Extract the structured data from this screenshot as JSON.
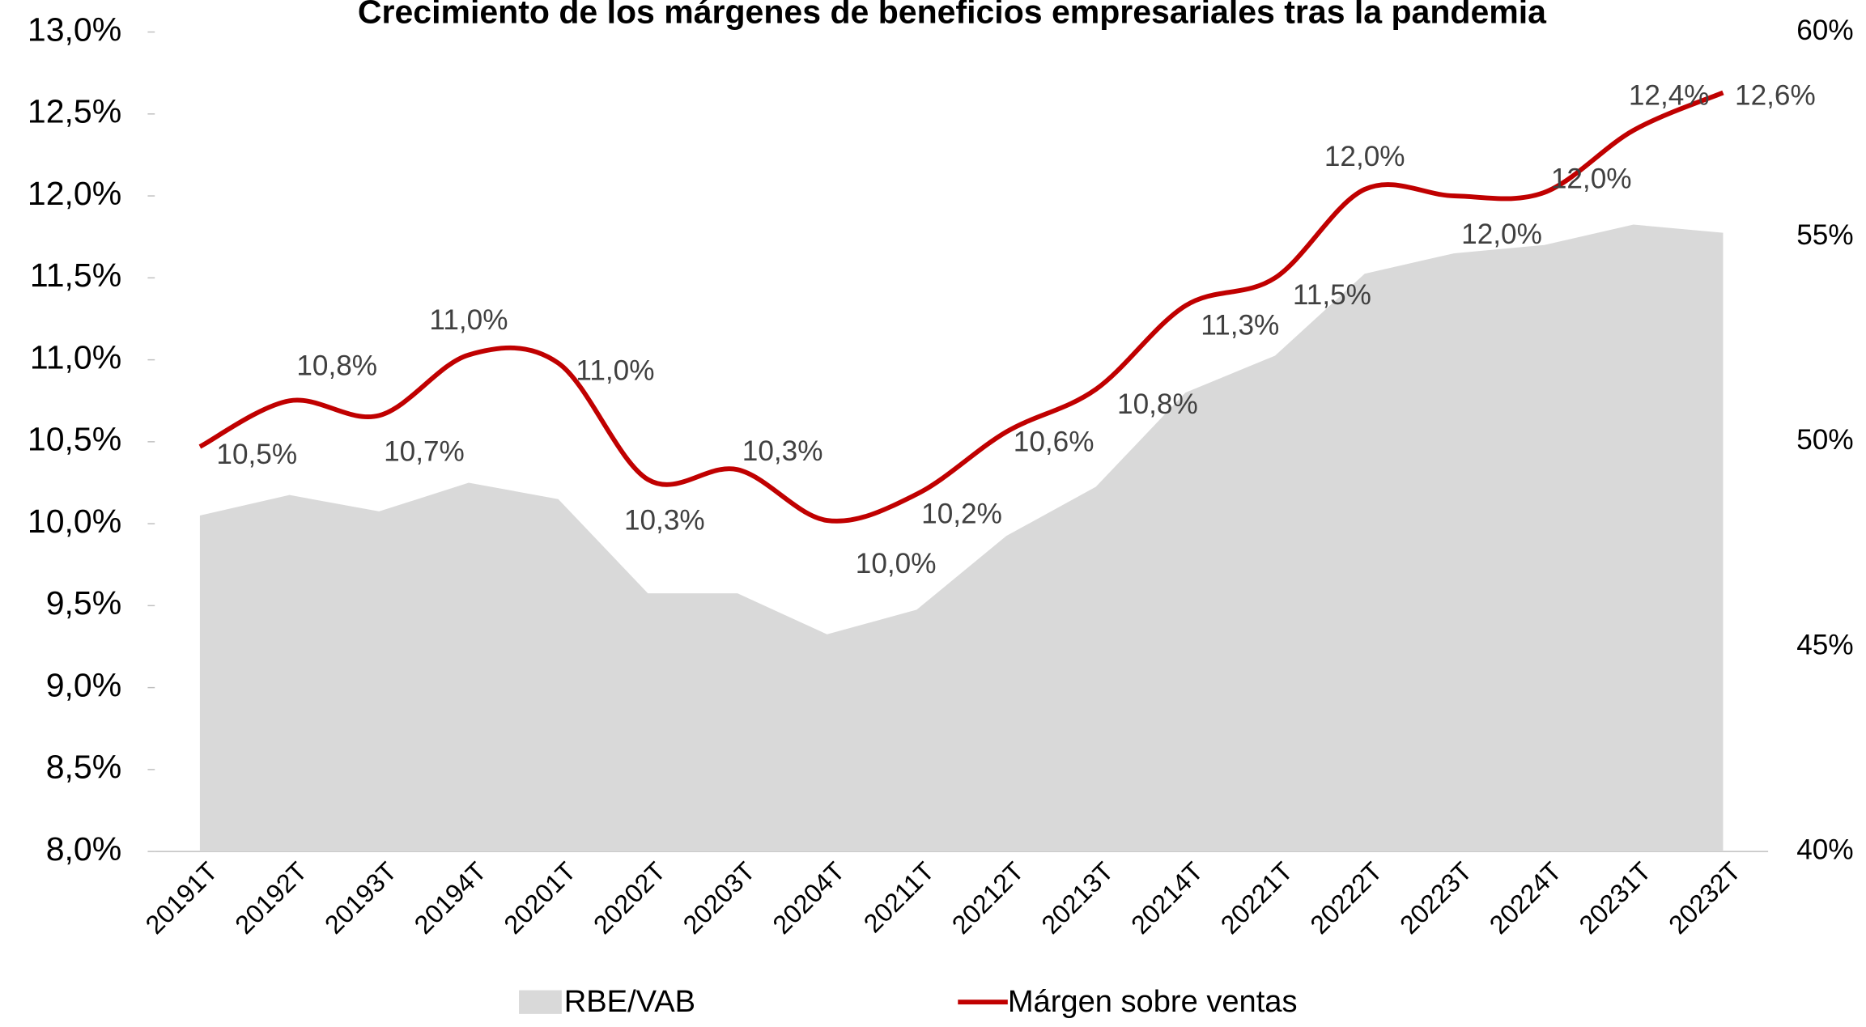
{
  "chart_data": {
    "type": "line",
    "title": "Crecimiento de los márgenes de beneficios empresariales tras la pandemia",
    "categories": [
      "20191T",
      "20192T",
      "20193T",
      "20194T",
      "20201T",
      "20202T",
      "20203T",
      "20204T",
      "20211T",
      "20212T",
      "20213T",
      "20214T",
      "20221T",
      "20222T",
      "20223T",
      "20224T",
      "20231T",
      "20232T"
    ],
    "series": [
      {
        "name": "RBE/VAB",
        "type": "area",
        "axis": "y2",
        "color": "#d9d9d9",
        "values": [
          48.2,
          48.7,
          48.3,
          49.0,
          48.6,
          46.3,
          46.3,
          45.3,
          45.9,
          47.7,
          48.9,
          51.2,
          52.1,
          54.1,
          54.6,
          54.8,
          55.3,
          55.1
        ]
      },
      {
        "name": "Márgen sobre ventas",
        "type": "line",
        "color": "#c00000",
        "values": [
          10.47,
          10.75,
          10.66,
          11.03,
          10.98,
          10.27,
          10.33,
          10.02,
          10.18,
          10.56,
          10.82,
          11.33,
          11.5,
          12.04,
          12.0,
          12.02,
          12.4,
          12.63
        ],
        "value_labels": [
          "10,5%",
          "10,8%",
          "10,7%",
          "11,0%",
          "11,0%",
          "10,3%",
          "10,3%",
          "10,0%",
          "10,2%",
          "10,6%",
          "10,8%",
          "11,3%",
          "11,5%",
          "12,0%",
          "12,0%",
          "12,0%",
          "12,4%",
          "12,6%"
        ]
      }
    ],
    "ylim": [
      8,
      13
    ],
    "yticks": [
      {
        "value": 8,
        "label": "8,0%"
      },
      {
        "value": 8.5,
        "label": "8,5%"
      },
      {
        "value": 9,
        "label": "9,0%"
      },
      {
        "value": 9.5,
        "label": "9,5%"
      },
      {
        "value": 10,
        "label": "10,0%"
      },
      {
        "value": 10.5,
        "label": "10,5%"
      },
      {
        "value": 11,
        "label": "11,0%"
      },
      {
        "value": 11.5,
        "label": "11,5%"
      },
      {
        "value": 12,
        "label": "12,0%"
      },
      {
        "value": 12.5,
        "label": "12,5%"
      },
      {
        "value": 13,
        "label": "13,0%"
      }
    ],
    "y2lim": [
      40,
      60
    ],
    "y2ticks": [
      {
        "value": 40,
        "label": "40%"
      },
      {
        "value": 45,
        "label": "45%"
      },
      {
        "value": 50,
        "label": "50%"
      },
      {
        "value": 55,
        "label": "55%"
      },
      {
        "value": 60,
        "label": "60%"
      }
    ],
    "legend": "bottom"
  }
}
